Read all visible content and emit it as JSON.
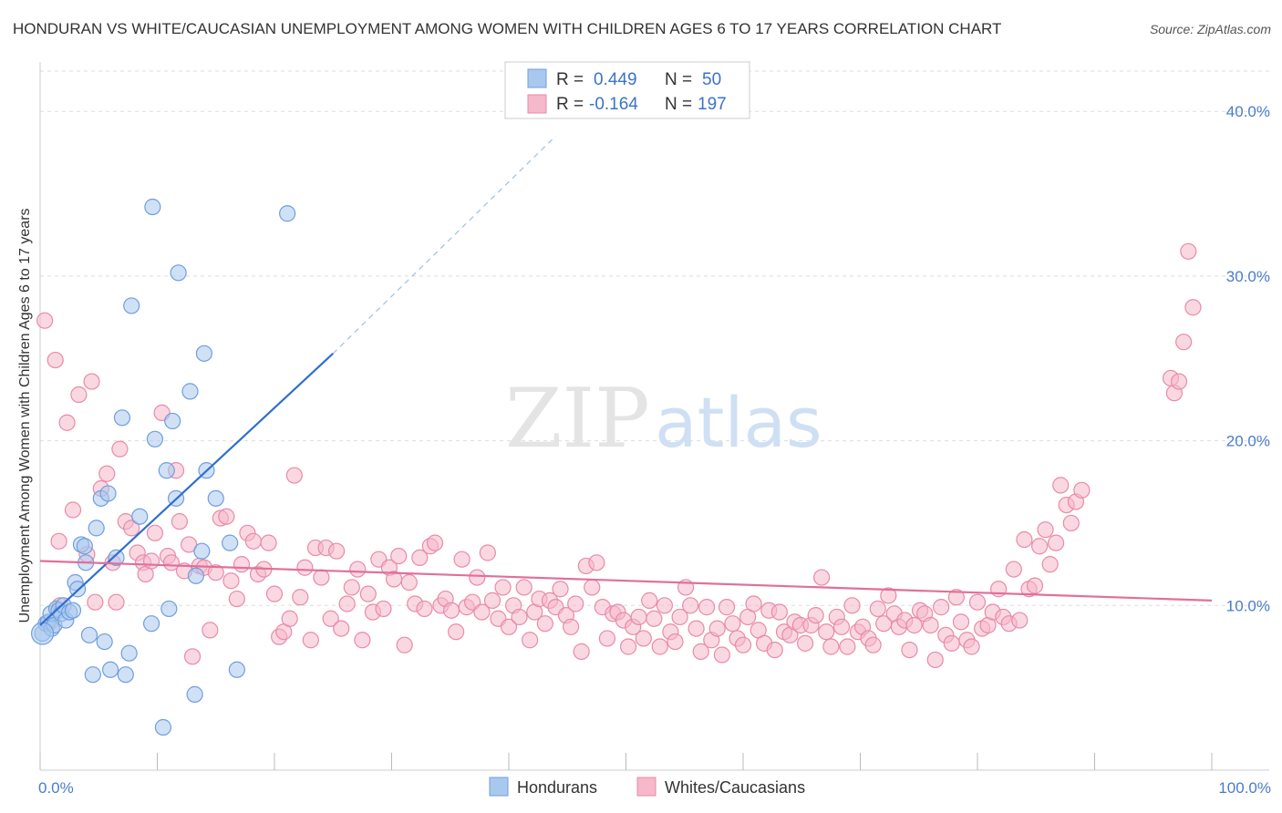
{
  "title": "HONDURAN VS WHITE/CAUCASIAN UNEMPLOYMENT AMONG WOMEN WITH CHILDREN AGES 6 TO 17 YEARS CORRELATION CHART",
  "source": "Source: ZipAtlas.com",
  "watermark": {
    "zip": "ZIP",
    "atlas": "atlas"
  },
  "colors": {
    "blue_fill": "#a9c8ee",
    "blue_stroke": "#6f9fdc",
    "blue_line": "#2f6fce",
    "pink_fill": "#f6b8cb",
    "pink_stroke": "#e98aa9",
    "pink_line": "#e0709a",
    "tick": "#4a7cc9",
    "grid": "#dddddd"
  },
  "legend": {
    "rows": [
      {
        "r_label": "R =",
        "r_value": "0.449",
        "n_label": "N =",
        "n_value": "50"
      },
      {
        "r_label": "R =",
        "r_value": "-0.164",
        "n_label": "N =",
        "n_value": "197"
      }
    ]
  },
  "chart_data": {
    "type": "scatter",
    "title": "HONDURAN VS WHITE/CAUCASIAN UNEMPLOYMENT AMONG WOMEN WITH CHILDREN AGES 6 TO 17 YEARS CORRELATION CHART",
    "ylabel": "Unemployment Among Women with Children Ages 6 to 17 years",
    "xlabel": "",
    "xlim": [
      0,
      100
    ],
    "ylim": [
      0,
      43
    ],
    "x_tick_labels": [
      "0.0%",
      "100.0%"
    ],
    "y_ticks": [
      10,
      20,
      30,
      40
    ],
    "y_tick_labels": [
      "10.0%",
      "20.0%",
      "30.0%",
      "40.0%"
    ],
    "grid": true,
    "legend_position": "top-center",
    "series": [
      {
        "name": "Hondurans",
        "r": 0.449,
        "n": 50,
        "trend": {
          "x0": 0,
          "y0": 8.8,
          "x1": 25,
          "y1": 25.3,
          "dashed_to_x": 44,
          "dashed_to_y": 38.5
        },
        "points": [
          [
            0.2,
            8.3
          ],
          [
            0.5,
            8.9
          ],
          [
            0.7,
            9.0
          ],
          [
            0.9,
            9.5
          ],
          [
            1.0,
            8.6
          ],
          [
            1.2,
            8.8
          ],
          [
            1.4,
            9.8
          ],
          [
            1.6,
            9.7
          ],
          [
            1.8,
            9.5
          ],
          [
            2.0,
            10.0
          ],
          [
            2.2,
            9.1
          ],
          [
            2.5,
            9.6
          ],
          [
            2.8,
            9.7
          ],
          [
            3.0,
            11.4
          ],
          [
            3.2,
            11.0
          ],
          [
            3.5,
            13.7
          ],
          [
            3.8,
            13.6
          ],
          [
            3.9,
            12.6
          ],
          [
            4.2,
            8.2
          ],
          [
            4.5,
            5.8
          ],
          [
            4.8,
            14.7
          ],
          [
            5.2,
            16.5
          ],
          [
            5.5,
            7.8
          ],
          [
            5.8,
            16.8
          ],
          [
            6.0,
            6.1
          ],
          [
            6.5,
            12.9
          ],
          [
            7.0,
            21.4
          ],
          [
            7.3,
            5.8
          ],
          [
            7.6,
            7.1
          ],
          [
            7.8,
            28.2
          ],
          [
            8.5,
            15.4
          ],
          [
            9.5,
            8.9
          ],
          [
            9.6,
            34.2
          ],
          [
            9.8,
            20.1
          ],
          [
            10.5,
            2.6
          ],
          [
            10.8,
            18.2
          ],
          [
            11.0,
            9.8
          ],
          [
            11.3,
            21.2
          ],
          [
            11.6,
            16.5
          ],
          [
            11.8,
            30.2
          ],
          [
            12.8,
            23.0
          ],
          [
            13.2,
            4.6
          ],
          [
            13.3,
            11.8
          ],
          [
            13.8,
            13.3
          ],
          [
            14.0,
            25.3
          ],
          [
            14.2,
            18.2
          ],
          [
            15.0,
            16.5
          ],
          [
            16.2,
            13.8
          ],
          [
            16.8,
            6.1
          ],
          [
            21.1,
            33.8
          ]
        ]
      },
      {
        "name": "Whites/Caucasians",
        "r": -0.164,
        "n": 197,
        "trend": {
          "x0": 0,
          "y0": 12.7,
          "x1": 100,
          "y1": 10.3
        },
        "points": [
          [
            0.4,
            27.3
          ],
          [
            1.3,
            24.9
          ],
          [
            1.6,
            13.9
          ],
          [
            2.3,
            21.1
          ],
          [
            2.8,
            15.8
          ],
          [
            3.3,
            22.8
          ],
          [
            4.0,
            13.1
          ],
          [
            4.4,
            23.6
          ],
          [
            4.7,
            10.2
          ],
          [
            5.2,
            17.1
          ],
          [
            5.7,
            18.0
          ],
          [
            6.2,
            12.6
          ],
          [
            6.5,
            10.2
          ],
          [
            6.8,
            19.5
          ],
          [
            7.3,
            15.1
          ],
          [
            7.8,
            14.7
          ],
          [
            8.3,
            13.2
          ],
          [
            8.8,
            12.6
          ],
          [
            9.0,
            11.9
          ],
          [
            9.5,
            12.7
          ],
          [
            9.8,
            14.4
          ],
          [
            10.4,
            21.7
          ],
          [
            10.9,
            13.0
          ],
          [
            11.2,
            12.6
          ],
          [
            11.6,
            18.2
          ],
          [
            11.9,
            15.1
          ],
          [
            12.3,
            12.1
          ],
          [
            12.7,
            13.7
          ],
          [
            13.0,
            6.9
          ],
          [
            13.6,
            12.4
          ],
          [
            14.0,
            12.3
          ],
          [
            14.5,
            8.5
          ],
          [
            15.0,
            12.0
          ],
          [
            15.4,
            15.3
          ],
          [
            15.9,
            15.4
          ],
          [
            16.3,
            11.5
          ],
          [
            16.8,
            10.4
          ],
          [
            17.2,
            12.5
          ],
          [
            17.7,
            14.4
          ],
          [
            18.2,
            13.9
          ],
          [
            18.6,
            11.9
          ],
          [
            19.1,
            12.2
          ],
          [
            19.5,
            13.8
          ],
          [
            20.0,
            10.7
          ],
          [
            20.4,
            8.1
          ],
          [
            20.8,
            8.4
          ],
          [
            21.3,
            9.2
          ],
          [
            21.7,
            17.9
          ],
          [
            22.2,
            10.5
          ],
          [
            22.6,
            12.3
          ],
          [
            23.1,
            7.9
          ],
          [
            23.5,
            13.5
          ],
          [
            24.0,
            11.7
          ],
          [
            24.4,
            13.5
          ],
          [
            24.8,
            9.2
          ],
          [
            25.3,
            13.3
          ],
          [
            25.7,
            8.6
          ],
          [
            26.2,
            10.1
          ],
          [
            26.6,
            11.1
          ],
          [
            27.1,
            12.2
          ],
          [
            27.5,
            7.9
          ],
          [
            28.0,
            10.7
          ],
          [
            28.4,
            9.6
          ],
          [
            28.9,
            12.8
          ],
          [
            29.3,
            9.8
          ],
          [
            29.8,
            12.3
          ],
          [
            30.2,
            11.6
          ],
          [
            30.6,
            13.0
          ],
          [
            31.1,
            7.6
          ],
          [
            31.5,
            11.4
          ],
          [
            32.0,
            10.1
          ],
          [
            32.4,
            12.9
          ],
          [
            32.8,
            9.8
          ],
          [
            33.3,
            13.6
          ],
          [
            33.7,
            13.8
          ],
          [
            34.2,
            10.0
          ],
          [
            34.6,
            10.4
          ],
          [
            35.1,
            9.7
          ],
          [
            35.5,
            8.4
          ],
          [
            36.0,
            12.8
          ],
          [
            36.4,
            9.9
          ],
          [
            36.9,
            10.2
          ],
          [
            37.3,
            11.7
          ],
          [
            37.7,
            9.6
          ],
          [
            38.2,
            13.2
          ],
          [
            38.6,
            10.3
          ],
          [
            39.1,
            9.2
          ],
          [
            39.5,
            11.1
          ],
          [
            40.0,
            8.7
          ],
          [
            40.4,
            10.0
          ],
          [
            40.9,
            9.3
          ],
          [
            41.3,
            11.1
          ],
          [
            41.8,
            7.9
          ],
          [
            42.2,
            9.6
          ],
          [
            42.6,
            10.4
          ],
          [
            43.1,
            8.9
          ],
          [
            43.5,
            10.3
          ],
          [
            44.0,
            9.9
          ],
          [
            44.4,
            11.0
          ],
          [
            44.9,
            9.4
          ],
          [
            45.3,
            8.7
          ],
          [
            45.7,
            10.1
          ],
          [
            46.2,
            7.2
          ],
          [
            46.6,
            12.4
          ],
          [
            47.1,
            11.1
          ],
          [
            47.5,
            12.6
          ],
          [
            48.0,
            9.9
          ],
          [
            48.4,
            8.0
          ],
          [
            48.9,
            9.5
          ],
          [
            49.3,
            9.6
          ],
          [
            49.8,
            9.1
          ],
          [
            50.2,
            7.5
          ],
          [
            50.6,
            8.7
          ],
          [
            51.1,
            9.3
          ],
          [
            51.5,
            8.0
          ],
          [
            52.0,
            10.3
          ],
          [
            52.4,
            9.2
          ],
          [
            52.9,
            7.5
          ],
          [
            53.3,
            10.0
          ],
          [
            53.8,
            8.4
          ],
          [
            54.2,
            7.8
          ],
          [
            54.6,
            9.3
          ],
          [
            55.1,
            11.1
          ],
          [
            55.5,
            10.0
          ],
          [
            56.0,
            8.6
          ],
          [
            56.4,
            7.2
          ],
          [
            56.9,
            9.9
          ],
          [
            57.3,
            7.9
          ],
          [
            57.8,
            8.6
          ],
          [
            58.2,
            7.0
          ],
          [
            58.6,
            9.9
          ],
          [
            59.1,
            8.9
          ],
          [
            59.5,
            8.0
          ],
          [
            60.0,
            7.6
          ],
          [
            60.4,
            9.3
          ],
          [
            60.9,
            10.1
          ],
          [
            61.3,
            8.5
          ],
          [
            61.8,
            7.7
          ],
          [
            62.2,
            9.7
          ],
          [
            62.7,
            7.3
          ],
          [
            63.1,
            9.6
          ],
          [
            63.5,
            8.4
          ],
          [
            64.0,
            8.2
          ],
          [
            64.4,
            9.0
          ],
          [
            64.9,
            8.8
          ],
          [
            65.3,
            7.7
          ],
          [
            65.8,
            8.8
          ],
          [
            66.2,
            9.4
          ],
          [
            66.7,
            11.7
          ],
          [
            67.1,
            8.4
          ],
          [
            67.5,
            7.5
          ],
          [
            68.0,
            9.3
          ],
          [
            68.4,
            8.7
          ],
          [
            68.9,
            7.5
          ],
          [
            69.3,
            10.0
          ],
          [
            69.8,
            8.4
          ],
          [
            70.2,
            8.7
          ],
          [
            70.7,
            8.0
          ],
          [
            71.1,
            7.6
          ],
          [
            71.5,
            9.8
          ],
          [
            72.0,
            8.9
          ],
          [
            72.4,
            10.6
          ],
          [
            72.9,
            9.5
          ],
          [
            73.3,
            8.7
          ],
          [
            73.8,
            9.1
          ],
          [
            74.2,
            7.3
          ],
          [
            74.6,
            8.8
          ],
          [
            75.1,
            9.7
          ],
          [
            75.5,
            9.5
          ],
          [
            76.0,
            8.8
          ],
          [
            76.4,
            6.7
          ],
          [
            76.9,
            9.9
          ],
          [
            77.3,
            8.2
          ],
          [
            77.8,
            7.7
          ],
          [
            78.2,
            10.5
          ],
          [
            78.6,
            9.0
          ],
          [
            79.1,
            7.9
          ],
          [
            79.5,
            7.5
          ],
          [
            80.0,
            10.2
          ],
          [
            80.4,
            8.6
          ],
          [
            80.9,
            8.8
          ],
          [
            81.3,
            9.6
          ],
          [
            81.8,
            11.0
          ],
          [
            82.2,
            9.3
          ],
          [
            82.7,
            8.9
          ],
          [
            83.1,
            12.2
          ],
          [
            83.6,
            9.1
          ],
          [
            84.0,
            14.0
          ],
          [
            84.4,
            11.0
          ],
          [
            84.9,
            11.2
          ],
          [
            85.3,
            13.6
          ],
          [
            85.8,
            14.6
          ],
          [
            86.2,
            12.5
          ],
          [
            86.7,
            13.8
          ],
          [
            87.1,
            17.3
          ],
          [
            87.6,
            16.1
          ],
          [
            88.0,
            15.0
          ],
          [
            88.4,
            16.3
          ],
          [
            88.9,
            17.0
          ],
          [
            96.5,
            23.8
          ],
          [
            96.8,
            22.9
          ],
          [
            97.2,
            23.6
          ],
          [
            97.6,
            26.0
          ],
          [
            98.0,
            31.5
          ],
          [
            98.4,
            28.1
          ],
          [
            0.9,
            9.0
          ],
          [
            1.7,
            10.0
          ]
        ]
      }
    ]
  },
  "bottom_legend": [
    {
      "label": "Hondurans"
    },
    {
      "label": "Whites/Caucasians"
    }
  ]
}
